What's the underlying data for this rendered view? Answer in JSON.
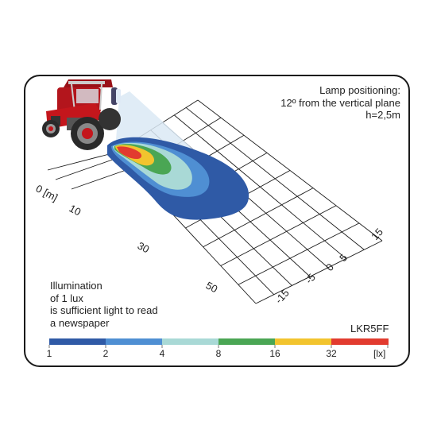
{
  "lamp_note": {
    "line1": "Lamp positioning:",
    "line2": "12º from the vertical plane",
    "line3": "h=2,5m"
  },
  "illumination_note": {
    "line1": "Illumination",
    "line2": "of 1 lux",
    "line3": "is sufficient light to read",
    "line4": "a newspaper"
  },
  "model": "LKR5FF",
  "distance_axis": {
    "labels": [
      "0 [m]",
      "10",
      "30",
      "50"
    ]
  },
  "lateral_axis": {
    "labels": [
      "15",
      "5",
      "0",
      "-5",
      "-15"
    ]
  },
  "scale": {
    "unit": "[lx]",
    "ticks": [
      "1",
      "2",
      "4",
      "8",
      "16",
      "32"
    ],
    "colors": [
      "#2f5aa6",
      "#4f8fd3",
      "#a9d9d6",
      "#4aa654",
      "#f2c42e",
      "#e23b2f"
    ]
  },
  "illumination_zones": [
    {
      "lux_min": 1,
      "color": "#2f5aa6"
    },
    {
      "lux_min": 2,
      "color": "#4f8fd3"
    },
    {
      "lux_min": 4,
      "color": "#a9d9d6"
    },
    {
      "lux_min": 8,
      "color": "#4aa654"
    },
    {
      "lux_min": 16,
      "color": "#f2c42e"
    },
    {
      "lux_min": 32,
      "color": "#e23b2f"
    }
  ]
}
